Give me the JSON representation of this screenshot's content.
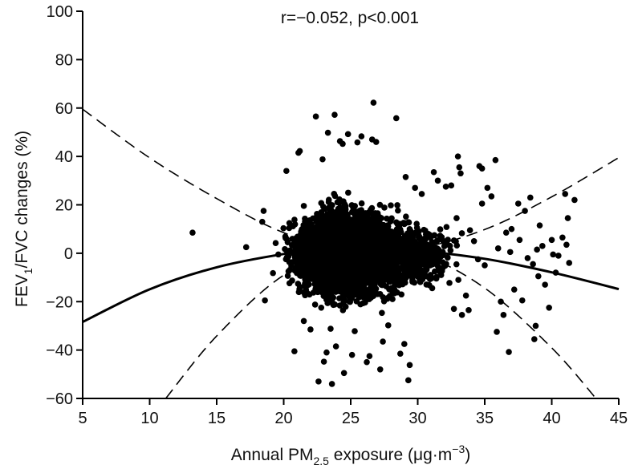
{
  "chart_data": {
    "type": "scatter",
    "title": "",
    "annotation": "r=−0.052, p<0.001",
    "xlabel": {
      "prefix": "Annual PM",
      "sub": "2.5",
      "suffix": " exposure (μg·m",
      "sup": "−3",
      "close": ")"
    },
    "ylabel": {
      "prefix": "FEV",
      "sub": "1",
      "suffix": "/FVC changes (%)"
    },
    "xlim": [
      5,
      45
    ],
    "ylim": [
      -60,
      100
    ],
    "x_ticks": [
      "5",
      "10",
      "15",
      "20",
      "25",
      "30",
      "35",
      "40",
      "45"
    ],
    "y_ticks": [
      "100",
      "80",
      "60",
      "40",
      "20",
      "0",
      "−20",
      "−40",
      "−60"
    ],
    "grid": false,
    "fit": {
      "type": "quadratic",
      "style": "solid",
      "points": [
        [
          5,
          -28.4
        ],
        [
          10,
          -14.9
        ],
        [
          15,
          -5.8
        ],
        [
          20,
          -0.3
        ],
        [
          22,
          0.6
        ],
        [
          25,
          1.2
        ],
        [
          30,
          0.9
        ],
        [
          35,
          -2.3
        ],
        [
          40,
          -7.9
        ],
        [
          45,
          -14.8
        ]
      ]
    },
    "confidence_upper": {
      "style": "dashed",
      "points": [
        [
          5,
          59.5
        ],
        [
          10,
          39.4
        ],
        [
          15,
          22.6
        ],
        [
          20,
          8.5
        ],
        [
          25,
          1.2
        ],
        [
          30,
          2.1
        ],
        [
          35,
          9.8
        ],
        [
          40,
          23.3
        ],
        [
          45,
          39.5
        ]
      ]
    },
    "confidence_lower": {
      "style": "dashed",
      "points": [
        [
          11.2,
          -60
        ],
        [
          15,
          -34.2
        ],
        [
          20,
          -9.1
        ],
        [
          25,
          1.2
        ],
        [
          30,
          -0.3
        ],
        [
          35,
          -14.4
        ],
        [
          40,
          -39.1
        ],
        [
          43.3,
          -60
        ]
      ]
    },
    "points": [
      [
        13.2,
        8.5
      ],
      [
        17.2,
        2.5
      ],
      [
        18.5,
        17.5
      ],
      [
        18.4,
        13.0
      ],
      [
        18.6,
        -19.5
      ],
      [
        19.2,
        -8.2
      ],
      [
        19.4,
        4.2
      ],
      [
        19.6,
        -0.5
      ],
      [
        20.2,
        34.0
      ],
      [
        20.8,
        -40.5
      ],
      [
        21.1,
        41.5
      ],
      [
        21.2,
        42.2
      ],
      [
        21.5,
        -28.0
      ],
      [
        22.0,
        -31.5
      ],
      [
        22.4,
        56.5
      ],
      [
        22.6,
        -53.0
      ],
      [
        22.9,
        38.8
      ],
      [
        22.8,
        -22.5
      ],
      [
        23.3,
        49.8
      ],
      [
        23.5,
        -31.2
      ],
      [
        23.2,
        -41.0
      ],
      [
        23.0,
        -44.8
      ],
      [
        23.6,
        -54.0
      ],
      [
        23.8,
        57.2
      ],
      [
        23.9,
        -38.5
      ],
      [
        24.2,
        46.3
      ],
      [
        24.4,
        45.2
      ],
      [
        24.5,
        -49.5
      ],
      [
        24.8,
        49.2
      ],
      [
        25.1,
        -42.0
      ],
      [
        25.3,
        -32.2
      ],
      [
        25.5,
        45.8
      ],
      [
        25.8,
        48.3
      ],
      [
        26.2,
        -45.0
      ],
      [
        26.4,
        -42.5
      ],
      [
        26.6,
        47.0
      ],
      [
        26.7,
        62.2
      ],
      [
        26.9,
        46.0
      ],
      [
        27.2,
        -48.0
      ],
      [
        27.4,
        -36.5
      ],
      [
        27.8,
        -29.8
      ],
      [
        28.4,
        55.8
      ],
      [
        28.7,
        -41.5
      ],
      [
        29.0,
        -37.5
      ],
      [
        29.3,
        -52.5
      ],
      [
        29.4,
        -46.2
      ],
      [
        29.1,
        31.5
      ],
      [
        29.8,
        27.0
      ],
      [
        30.3,
        24.5
      ],
      [
        31.2,
        33.5
      ],
      [
        31.5,
        30.0
      ],
      [
        32.1,
        27.5
      ],
      [
        32.5,
        28.0
      ],
      [
        32.7,
        -23.0
      ],
      [
        32.9,
        14.5
      ],
      [
        33.0,
        40.0
      ],
      [
        33.1,
        35.5
      ],
      [
        33.2,
        33.0
      ],
      [
        33.3,
        -25.5
      ],
      [
        33.6,
        -17.5
      ],
      [
        33.8,
        -23.5
      ],
      [
        33.9,
        9.5
      ],
      [
        34.2,
        5.0
      ],
      [
        34.6,
        36.0
      ],
      [
        34.8,
        35.0
      ],
      [
        34.8,
        20.5
      ],
      [
        35.2,
        27.0
      ],
      [
        35.5,
        23.5
      ],
      [
        35.8,
        38.5
      ],
      [
        35.9,
        -32.5
      ],
      [
        36.2,
        -20.0
      ],
      [
        36.4,
        -25.5
      ],
      [
        36.6,
        8.5
      ],
      [
        36.8,
        -40.8
      ],
      [
        37.0,
        10.0
      ],
      [
        37.2,
        -15.0
      ],
      [
        37.5,
        20.5
      ],
      [
        37.8,
        -19.5
      ],
      [
        38.0,
        17.5
      ],
      [
        38.4,
        23.0
      ],
      [
        38.7,
        -35.5
      ],
      [
        38.8,
        -30.0
      ],
      [
        38.6,
        -4.5
      ],
      [
        39.1,
        11.5
      ],
      [
        39.3,
        3.0
      ],
      [
        39.5,
        -13.0
      ],
      [
        39.8,
        -22.5
      ],
      [
        40.0,
        5.5
      ],
      [
        40.3,
        -8.0
      ],
      [
        40.8,
        6.5
      ],
      [
        41.0,
        24.5
      ],
      [
        41.2,
        14.5
      ],
      [
        41.3,
        -4.0
      ],
      [
        41.7,
        22.0
      ],
      [
        38.2,
        -2.0
      ],
      [
        39.0,
        -9.5
      ],
      [
        40.5,
        -1.0
      ],
      [
        36.0,
        2.0
      ],
      [
        35.0,
        -5.0
      ],
      [
        37.6,
        5.5
      ],
      [
        34.5,
        -2.5
      ],
      [
        36.9,
        0.5
      ],
      [
        38.9,
        1.5
      ],
      [
        40.1,
        -0.5
      ],
      [
        41.1,
        3.5
      ]
    ]
  }
}
